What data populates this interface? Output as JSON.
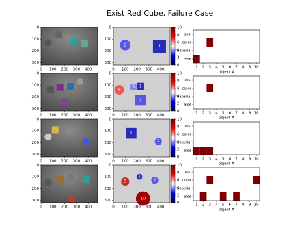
{
  "title": "Exist Red Cube, Failure Case",
  "scene_axes": {
    "xlim": [
      0,
      480
    ],
    "ylim": [
      0,
      320
    ],
    "xticks": [
      0,
      100,
      200,
      300,
      400
    ],
    "yticks": [
      0,
      100,
      200,
      300
    ]
  },
  "colorbar": {
    "lim": [
      0,
      10
    ],
    "ticks": [
      0,
      2,
      4,
      6,
      8,
      10
    ]
  },
  "matrix": {
    "ylabels": [
      "posi",
      "color",
      "material",
      "else"
    ],
    "xlim": [
      0.5,
      10.5
    ],
    "xticks": [
      1,
      2,
      3,
      4,
      5,
      6,
      7,
      8,
      9,
      10
    ],
    "xlabel": "object #",
    "color": "#7f0000"
  },
  "rows": [
    {
      "segment_labels": [
        2,
        1
      ],
      "cells": [
        {
          "x": 3,
          "row": "color"
        },
        {
          "x": 1,
          "row": "else"
        }
      ]
    },
    {
      "segment_labels": [
        8,
        3,
        1,
        2
      ],
      "cells": [
        {
          "x": 3,
          "row": "color"
        }
      ]
    },
    {
      "segment_labels": [
        1,
        2
      ],
      "cells": [
        {
          "x": 1,
          "row": "else"
        },
        {
          "x": 2,
          "row": "else"
        },
        {
          "x": 3,
          "row": "else"
        }
      ]
    },
    {
      "segment_labels": [
        9,
        1,
        2,
        10
      ],
      "cells": [
        {
          "x": 3,
          "row": "color"
        },
        {
          "x": 2,
          "row": "else"
        },
        {
          "x": 5,
          "row": "else"
        },
        {
          "x": 7,
          "row": "else"
        },
        {
          "x": 10,
          "row": "color"
        }
      ]
    }
  ]
}
